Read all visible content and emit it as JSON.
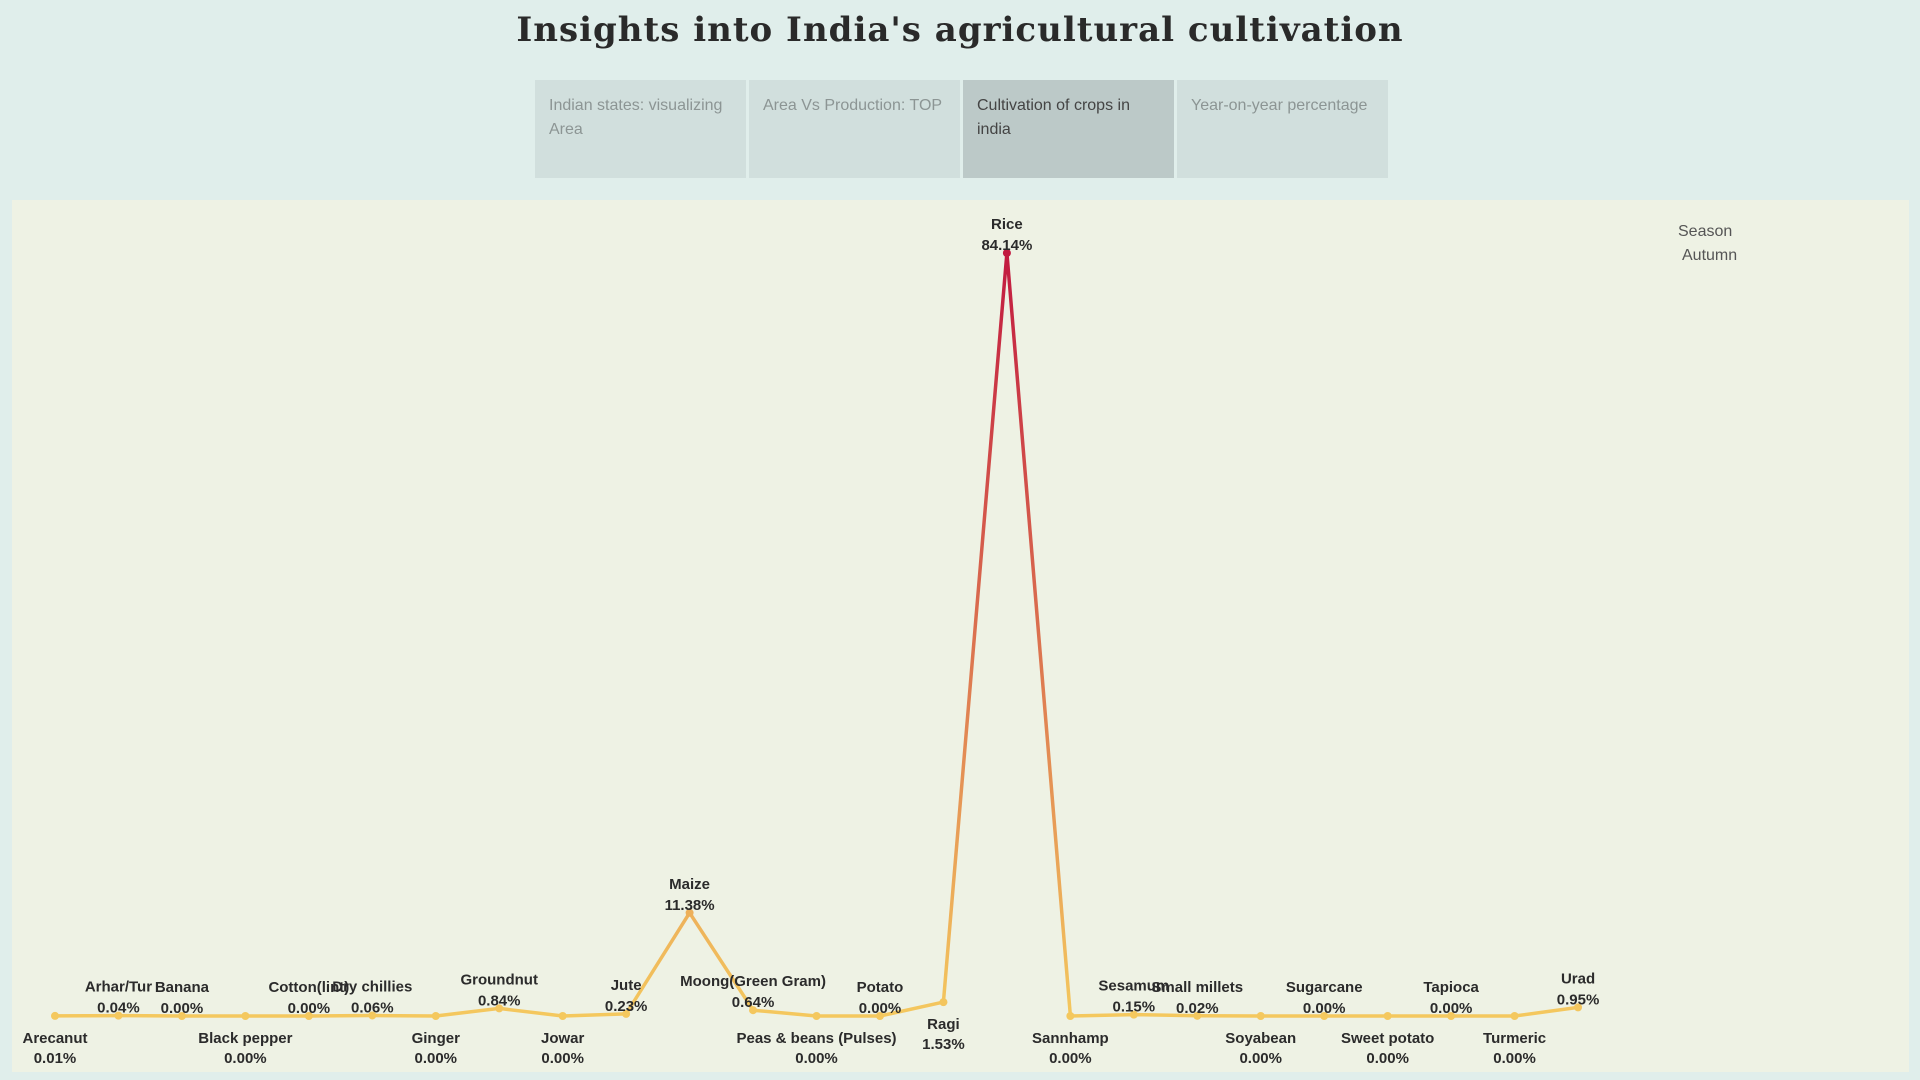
{
  "header": {
    "title": "Insights into India's agricultural cultivation"
  },
  "tabs": [
    {
      "label": "Indian states: visualizing Area",
      "active": false
    },
    {
      "label": "Area Vs    Production: TOP",
      "active": false
    },
    {
      "label": "Cultivation of crops in india",
      "active": true
    },
    {
      "label": "Year-on-year percentage",
      "active": false
    }
  ],
  "legend": {
    "title": "Season",
    "value": "Autumn"
  },
  "colors": {
    "low": "#f4c85e",
    "high": "#c21a40",
    "background": "#e0eeeb",
    "panel": "#eef2e4"
  },
  "chart_data": {
    "type": "line",
    "title": "",
    "xlabel": "",
    "ylabel": "",
    "ylim": [
      0,
      84.14
    ],
    "grid": false,
    "legend_placement": "top-right",
    "series": [
      {
        "categories": [
          "Arecanut",
          "Arhar/Tur",
          "Banana",
          "Black pepper",
          "Cotton(lint)",
          "Dry chillies",
          "Ginger",
          "Groundnut",
          "Jowar",
          "Jute",
          "Maize",
          "Moong(Green Gram)",
          "Peas & beans (Pulses)",
          "Potato",
          "Ragi",
          "Rice",
          "Sannhamp",
          "Sesamum",
          "Small millets",
          "Soyabean",
          "Sugarcane",
          "Sweet potato",
          "Tapioca",
          "Turmeric",
          "Urad"
        ],
        "values": [
          0.01,
          0.04,
          0.0,
          0.0,
          0.0,
          0.06,
          0.0,
          0.84,
          0.0,
          0.23,
          11.38,
          0.64,
          0.0,
          0.0,
          1.53,
          84.14,
          0.0,
          0.15,
          0.02,
          0.0,
          0.0,
          0.0,
          0.0,
          0.0,
          0.95
        ],
        "labels": [
          "0.01%",
          "0.04%",
          "0.00%",
          "0.00%",
          "0.00%",
          "0.06%",
          "0.00%",
          "0.84%",
          "0.00%",
          "0.23%",
          "11.38%",
          "0.64%",
          "0.00%",
          "0.00%",
          "1.53%",
          "84.14%",
          "0.00%",
          "0.15%",
          "0.02%",
          "0.00%",
          "0.00%",
          "0.00%",
          "0.00%",
          "0.00%",
          "0.95%"
        ],
        "label_position": [
          "below",
          "above",
          "above",
          "below",
          "above",
          "above",
          "below",
          "above",
          "below",
          "above",
          "above",
          "above",
          "below",
          "above",
          "below",
          "above",
          "below",
          "above",
          "above",
          "below",
          "above",
          "below",
          "above",
          "below",
          "above"
        ]
      }
    ]
  }
}
